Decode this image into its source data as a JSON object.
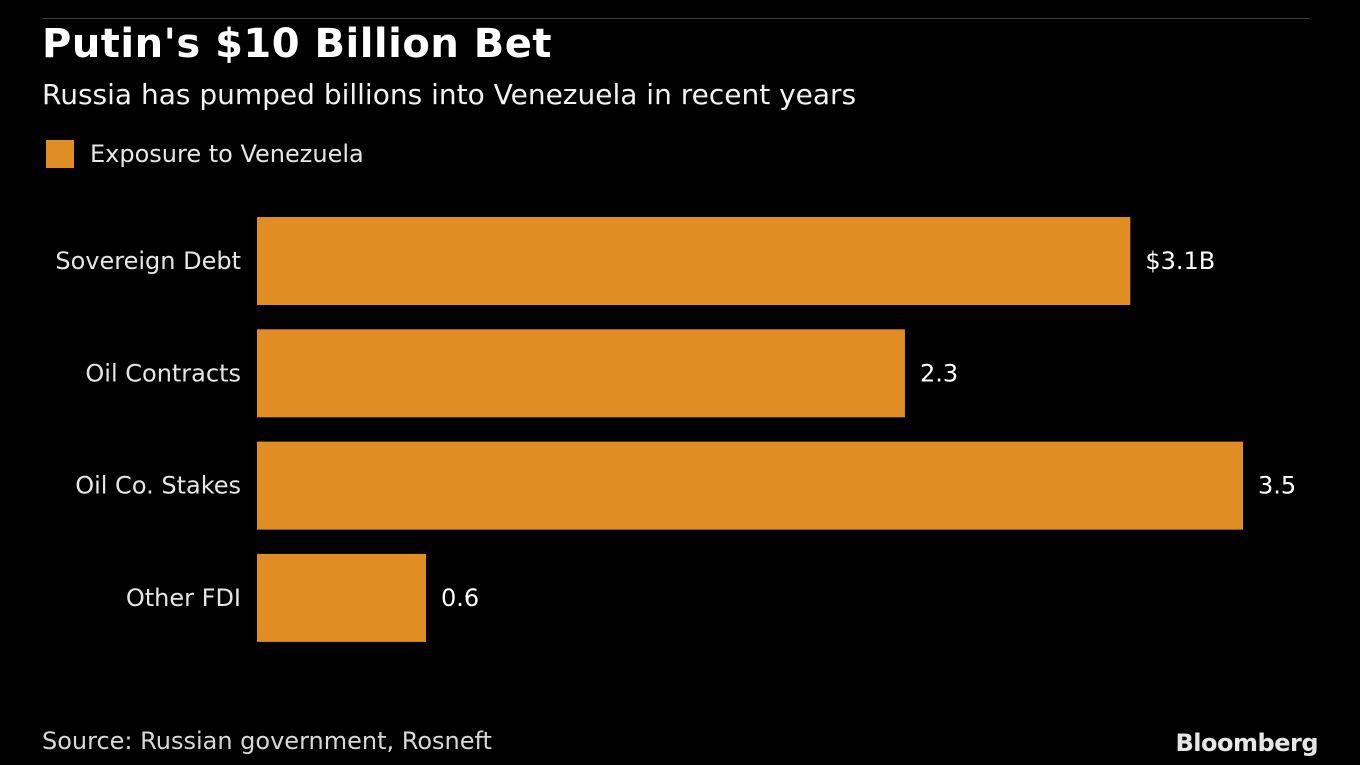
{
  "title": "Putin's $10 Billion Bet",
  "subtitle": "Russia has pumped billions into Venezuela in recent years",
  "legend": {
    "label": "Exposure to Venezuela"
  },
  "colors": {
    "bar": "#e08d24",
    "background": "#000000",
    "text": "#ffffff"
  },
  "chart_data": {
    "type": "bar",
    "orientation": "horizontal",
    "categories": [
      "Sovereign Debt",
      "Oil Contracts",
      "Oil Co. Stakes",
      "Other FDI"
    ],
    "series": [
      {
        "name": "Exposure to Venezuela",
        "values": [
          3.1,
          2.3,
          3.5,
          0.6
        ]
      }
    ],
    "data_labels": [
      "$3.1B",
      "2.3",
      "3.5",
      "0.6"
    ],
    "xlim": [
      0,
      3.5
    ],
    "grid": false,
    "legend_position": "top-left"
  },
  "source": "Source: Russian government, Rosneft",
  "brand": "Bloomberg"
}
